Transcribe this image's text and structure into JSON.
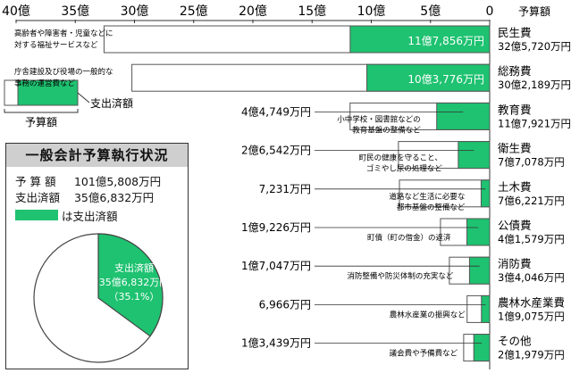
{
  "chart_data": {
    "type": "bar",
    "orientation": "horizontal",
    "direction": "right-to-left",
    "xlim": [
      0,
      40
    ],
    "x_ticks": [
      "40億",
      "35億",
      "30億",
      "25億",
      "20億",
      "15億",
      "10億",
      "5億",
      "0"
    ],
    "header_right": "予算額",
    "legend_key": {
      "budget_label": "予算額",
      "spent_label": "支出済額"
    },
    "colors": {
      "spent": "#1ec270",
      "budget": "#ffffff",
      "outline": "#555555"
    },
    "categories": [
      {
        "name": "民生費",
        "budget_text": "32億5,720万円",
        "budget": 32.572,
        "spent": 11.7856,
        "spent_text": "11億7,856万円",
        "spent_label_inside": true,
        "desc": [
          "高齢者や障害者・児童などに",
          "対する福祉サービスなど"
        ]
      },
      {
        "name": "総務費",
        "budget_text": "30億2,189万円",
        "budget": 30.2189,
        "spent": 10.3776,
        "spent_text": "10億3,776万円",
        "spent_label_inside": true,
        "desc": [
          "庁舎建設及び役場の一般的な",
          "事務の運営費など"
        ]
      },
      {
        "name": "教育費",
        "budget_text": "11億7,921万円",
        "budget": 11.7921,
        "spent": 4.4749,
        "spent_text": "4億4,749万円",
        "spent_label_inside": false,
        "desc": [
          "小中学校・図書館などの",
          "教育基盤の整備など"
        ]
      },
      {
        "name": "衛生費",
        "budget_text": "7億7,078万円",
        "budget": 7.7078,
        "spent": 2.6542,
        "spent_text": "2億6,542万円",
        "spent_label_inside": false,
        "desc": [
          "町民の健康を守ること、",
          "ゴミやし尿の処理など"
        ]
      },
      {
        "name": "土木費",
        "budget_text": "7億6,221万円",
        "budget": 7.6221,
        "spent": 0.7231,
        "spent_text": "7,231万円",
        "spent_label_inside": false,
        "desc": [
          "道路など生活に必要な",
          "都市基盤の整備など"
        ]
      },
      {
        "name": "公債費",
        "budget_text": "4億1,579万円",
        "budget": 4.1579,
        "spent": 1.9226,
        "spent_text": "1億9,226万円",
        "spent_label_inside": false,
        "desc": [
          "町債（町の借金）の返済"
        ]
      },
      {
        "name": "消防費",
        "budget_text": "3億4,046万円",
        "budget": 3.4046,
        "spent": 1.7047,
        "spent_text": "1億7,047万円",
        "spent_label_inside": false,
        "desc": [
          "消防整備や防災体制の充実など"
        ]
      },
      {
        "name": "農林水産業費",
        "budget_text": "1億9,075万円",
        "budget": 1.9075,
        "spent": 0.6966,
        "spent_text": "6,966万円",
        "spent_label_inside": false,
        "desc": [
          "農林水産業の振興など"
        ]
      },
      {
        "name": "その他",
        "budget_text": "2億1,979万円",
        "budget": 2.1979,
        "spent": 1.3439,
        "spent_text": "1億3,439万円",
        "spent_label_inside": false,
        "desc": [
          "議会費や予備費など"
        ]
      }
    ]
  },
  "summary": {
    "title": "一般会計予算執行状況",
    "budget_label": "予 算 額",
    "budget_value": "101億5,808万円",
    "spent_label": "支出済額",
    "spent_value": "35億6,832万円",
    "legend_text": "は支出済額",
    "pie": {
      "spent_fraction": 0.351,
      "label_line1": "支出済額",
      "label_line2": "35億6,832万円",
      "label_line3": "（35.1%）"
    }
  }
}
